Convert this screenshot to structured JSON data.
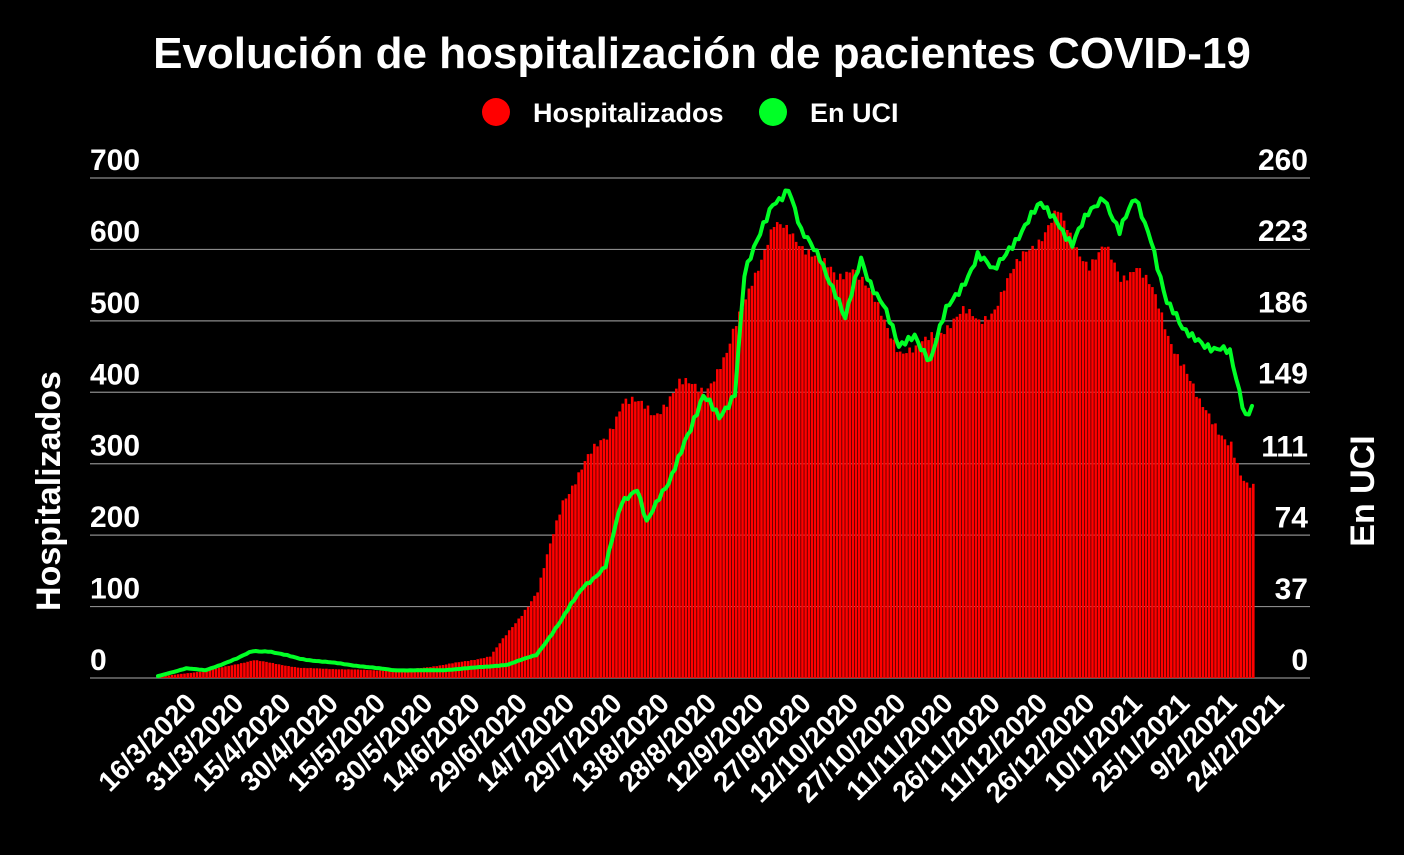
{
  "chart_data": {
    "type": "bar+line",
    "title": "Evolución de hospitalización de pacientes COVID-19",
    "legend": {
      "position": "top-center",
      "items": [
        {
          "label": "Hospitalizados",
          "color": "#ff0000"
        },
        {
          "label": "En UCI",
          "color": "#00ff26"
        }
      ]
    },
    "y_left": {
      "label": "Hospitalizados",
      "min": 0,
      "max": 700,
      "ticks": [
        0,
        100,
        200,
        300,
        400,
        500,
        600,
        700
      ]
    },
    "y_right": {
      "label": "En UCI",
      "min": 0,
      "max": 260,
      "ticks": [
        0,
        37,
        74,
        111,
        149,
        186,
        223,
        260
      ]
    },
    "grid": true,
    "x_tick_labels": [
      "16/3/2020",
      "31/3/2020",
      "15/4/2020",
      "30/4/2020",
      "15/5/2020",
      "30/5/2020",
      "14/6/2020",
      "29/6/2020",
      "14/7/2020",
      "29/7/2020",
      "13/8/2020",
      "28/8/2020",
      "12/9/2020",
      "27/9/2020",
      "12/10/2020",
      "27/10/2020",
      "11/11/2020",
      "26/11/2020",
      "11/12/2020",
      "26/12/2020",
      "10/1/2021",
      "25/1/2021",
      "9/2/2021",
      "24/2/2021"
    ],
    "series": [
      {
        "name": "Hospitalizados",
        "kind": "bar",
        "axis": "left",
        "color": "#ff0000",
        "key_points": [
          {
            "date": "16/3/2020",
            "value": 2
          },
          {
            "date": "31/3/2020",
            "value": 10
          },
          {
            "date": "15/4/2020",
            "value": 25
          },
          {
            "date": "30/4/2020",
            "value": 14
          },
          {
            "date": "15/5/2020",
            "value": 12
          },
          {
            "date": "30/5/2020",
            "value": 10
          },
          {
            "date": "14/6/2020",
            "value": 18
          },
          {
            "date": "29/6/2020",
            "value": 30
          },
          {
            "date": "14/7/2020",
            "value": 120
          },
          {
            "date": "22/7/2020",
            "value": 250
          },
          {
            "date": "29/7/2020",
            "value": 300
          },
          {
            "date": "5/8/2020",
            "value": 340
          },
          {
            "date": "10/8/2020",
            "value": 390
          },
          {
            "date": "13/8/2020",
            "value": 385
          },
          {
            "date": "20/8/2020",
            "value": 370
          },
          {
            "date": "28/8/2020",
            "value": 410
          },
          {
            "date": "5/9/2020",
            "value": 405
          },
          {
            "date": "12/9/2020",
            "value": 450
          },
          {
            "date": "20/9/2020",
            "value": 560
          },
          {
            "date": "27/9/2020",
            "value": 630
          },
          {
            "date": "2/10/2020",
            "value": 625
          },
          {
            "date": "8/10/2020",
            "value": 600
          },
          {
            "date": "12/10/2020",
            "value": 580
          },
          {
            "date": "17/10/2020",
            "value": 560
          },
          {
            "date": "22/10/2020",
            "value": 580
          },
          {
            "date": "27/10/2020",
            "value": 540
          },
          {
            "date": "1/11/2020",
            "value": 500
          },
          {
            "date": "6/11/2020",
            "value": 460
          },
          {
            "date": "11/11/2020",
            "value": 455
          },
          {
            "date": "16/11/2020",
            "value": 480
          },
          {
            "date": "21/11/2020",
            "value": 495
          },
          {
            "date": "26/11/2020",
            "value": 510
          },
          {
            "date": "1/12/2020",
            "value": 500
          },
          {
            "date": "6/12/2020",
            "value": 520
          },
          {
            "date": "11/12/2020",
            "value": 560
          },
          {
            "date": "16/12/2020",
            "value": 600
          },
          {
            "date": "21/12/2020",
            "value": 620
          },
          {
            "date": "26/12/2020",
            "value": 650
          },
          {
            "date": "31/12/2020",
            "value": 610
          },
          {
            "date": "5/1/2021",
            "value": 580
          },
          {
            "date": "10/1/2021",
            "value": 600
          },
          {
            "date": "15/1/2021",
            "value": 560
          },
          {
            "date": "20/1/2021",
            "value": 580
          },
          {
            "date": "25/1/2021",
            "value": 540
          },
          {
            "date": "30/1/2021",
            "value": 480
          },
          {
            "date": "4/2/2021",
            "value": 440
          },
          {
            "date": "9/2/2021",
            "value": 380
          },
          {
            "date": "14/2/2021",
            "value": 355
          },
          {
            "date": "19/2/2021",
            "value": 330
          },
          {
            "date": "22/2/2021",
            "value": 280
          },
          {
            "date": "24/2/2021",
            "value": 265
          },
          {
            "date": "26/2/2021",
            "value": 265
          }
        ]
      },
      {
        "name": "En UCI",
        "kind": "line",
        "axis": "right",
        "color": "#00ff26",
        "key_points": [
          {
            "date": "16/3/2020",
            "value": 1
          },
          {
            "date": "25/3/2020",
            "value": 5
          },
          {
            "date": "31/3/2020",
            "value": 4
          },
          {
            "date": "10/4/2020",
            "value": 10
          },
          {
            "date": "15/4/2020",
            "value": 14
          },
          {
            "date": "20/4/2020",
            "value": 14
          },
          {
            "date": "30/4/2020",
            "value": 10
          },
          {
            "date": "5/5/2020",
            "value": 9
          },
          {
            "date": "15/5/2020",
            "value": 7
          },
          {
            "date": "30/5/2020",
            "value": 4
          },
          {
            "date": "14/6/2020",
            "value": 4
          },
          {
            "date": "29/6/2020",
            "value": 6
          },
          {
            "date": "5/7/2020",
            "value": 7
          },
          {
            "date": "14/7/2020",
            "value": 12
          },
          {
            "date": "22/7/2020",
            "value": 30
          },
          {
            "date": "29/7/2020",
            "value": 48
          },
          {
            "date": "5/8/2020",
            "value": 58
          },
          {
            "date": "10/8/2020",
            "value": 90
          },
          {
            "date": "15/8/2020",
            "value": 100
          },
          {
            "date": "18/8/2020",
            "value": 82
          },
          {
            "date": "25/8/2020",
            "value": 100
          },
          {
            "date": "30/8/2020",
            "value": 125
          },
          {
            "date": "5/9/2020",
            "value": 145
          },
          {
            "date": "10/9/2020",
            "value": 135
          },
          {
            "date": "15/9/2020",
            "value": 150
          },
          {
            "date": "18/9/2020",
            "value": 210
          },
          {
            "date": "22/9/2020",
            "value": 225
          },
          {
            "date": "27/9/2020",
            "value": 248
          },
          {
            "date": "2/10/2020",
            "value": 255
          },
          {
            "date": "6/10/2020",
            "value": 230
          },
          {
            "date": "12/10/2020",
            "value": 220
          },
          {
            "date": "17/10/2020",
            "value": 200
          },
          {
            "date": "20/10/2020",
            "value": 185
          },
          {
            "date": "25/10/2020",
            "value": 218
          },
          {
            "date": "27/10/2020",
            "value": 210
          },
          {
            "date": "1/11/2020",
            "value": 195
          },
          {
            "date": "6/11/2020",
            "value": 170
          },
          {
            "date": "11/11/2020",
            "value": 180
          },
          {
            "date": "16/11/2020",
            "value": 165
          },
          {
            "date": "21/11/2020",
            "value": 190
          },
          {
            "date": "26/11/2020",
            "value": 205
          },
          {
            "date": "1/12/2020",
            "value": 220
          },
          {
            "date": "6/12/2020",
            "value": 210
          },
          {
            "date": "11/12/2020",
            "value": 225
          },
          {
            "date": "16/12/2020",
            "value": 235
          },
          {
            "date": "21/12/2020",
            "value": 245
          },
          {
            "date": "26/12/2020",
            "value": 240
          },
          {
            "date": "31/12/2020",
            "value": 225
          },
          {
            "date": "5/1/2021",
            "value": 240
          },
          {
            "date": "10/1/2021",
            "value": 252
          },
          {
            "date": "15/1/2021",
            "value": 232
          },
          {
            "date": "20/1/2021",
            "value": 248
          },
          {
            "date": "25/1/2021",
            "value": 230
          },
          {
            "date": "30/1/2021",
            "value": 195
          },
          {
            "date": "4/2/2021",
            "value": 180
          },
          {
            "date": "9/2/2021",
            "value": 178
          },
          {
            "date": "14/2/2021",
            "value": 170
          },
          {
            "date": "19/2/2021",
            "value": 168
          },
          {
            "date": "22/2/2021",
            "value": 150
          },
          {
            "date": "24/2/2021",
            "value": 138
          },
          {
            "date": "26/2/2021",
            "value": 143
          }
        ]
      }
    ]
  }
}
